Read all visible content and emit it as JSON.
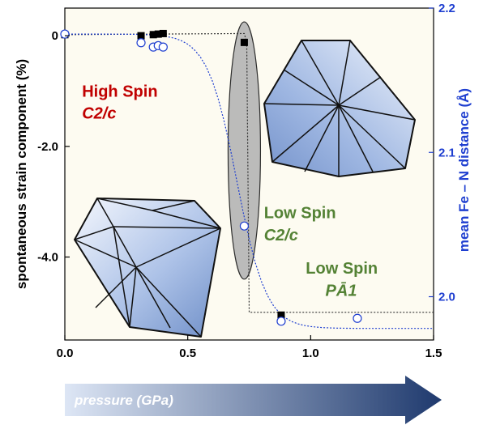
{
  "chart_data": {
    "type": "scatter",
    "x_axis": {
      "label": "",
      "range": [
        0,
        1.5
      ],
      "ticks": [
        "0.0",
        "0.5",
        "1.0",
        "1.5"
      ]
    },
    "y_left": {
      "label": "spontaneous strain component (%)",
      "range": [
        -5.5,
        0.5
      ],
      "ticks": [
        {
          "value": 0,
          "label": "0"
        },
        {
          "value": -2,
          "label": "-2.0"
        },
        {
          "value": -4,
          "label": "-4.0"
        }
      ]
    },
    "y_right": {
      "label": "mean Fe – N distance (Å)",
      "range": [
        1.97,
        2.2
      ],
      "ticks": [
        {
          "value": 2.2,
          "label": "2.2"
        },
        {
          "value": 2.1,
          "label": "2.1"
        },
        {
          "value": 2.0,
          "label": "2.0"
        }
      ]
    },
    "series": [
      {
        "marker": "filled-square",
        "color": "#000000",
        "axis": "left",
        "points": [
          [
            0.0,
            0.02
          ],
          [
            0.31,
            0.0
          ],
          [
            0.36,
            0.02
          ],
          [
            0.38,
            0.03
          ],
          [
            0.4,
            0.04
          ],
          [
            0.73,
            -0.12
          ],
          [
            0.88,
            -5.05
          ]
        ]
      },
      {
        "marker": "open-circle",
        "color": "#1f3fd0",
        "axis": "right",
        "points": [
          [
            0.0,
            2.182
          ],
          [
            0.31,
            2.176
          ],
          [
            0.36,
            2.173
          ],
          [
            0.38,
            2.174
          ],
          [
            0.4,
            2.173
          ],
          [
            0.73,
            2.049
          ],
          [
            0.88,
            1.983
          ],
          [
            1.19,
            1.985
          ]
        ]
      }
    ],
    "transition_ellipse": {
      "center_pressure": 0.73,
      "strain_range": [
        -4.4,
        0.25
      ],
      "color": "#b8b8b8"
    },
    "guide_lines": "dotted",
    "annotations": [
      {
        "text": "High Spin",
        "x": 0.07,
        "y": -1.1,
        "color": "#c00000"
      },
      {
        "text": "C2/c",
        "x": 0.07,
        "y": -1.5,
        "color": "#c00000",
        "italic": true
      },
      {
        "text": "Low Spin",
        "x": 0.81,
        "y": -3.3,
        "color": "#548235"
      },
      {
        "text": "C2/c",
        "x": 0.81,
        "y": -3.7,
        "color": "#548235",
        "italic": true
      },
      {
        "text": "Low Spin",
        "x": 0.98,
        "y": -4.3,
        "color": "#548235"
      },
      {
        "text": "PĀ1",
        "x": 1.06,
        "y": -4.7,
        "color": "#548235",
        "italic": true
      }
    ],
    "grid": false,
    "background": "#fdfbf1"
  },
  "arrow": {
    "label": "pressure (GPa)",
    "color_start": "#dde6f5",
    "color_end": "#1f3a6e"
  },
  "icons": [
    "octahedron-high-spin",
    "octahedron-low-spin"
  ]
}
